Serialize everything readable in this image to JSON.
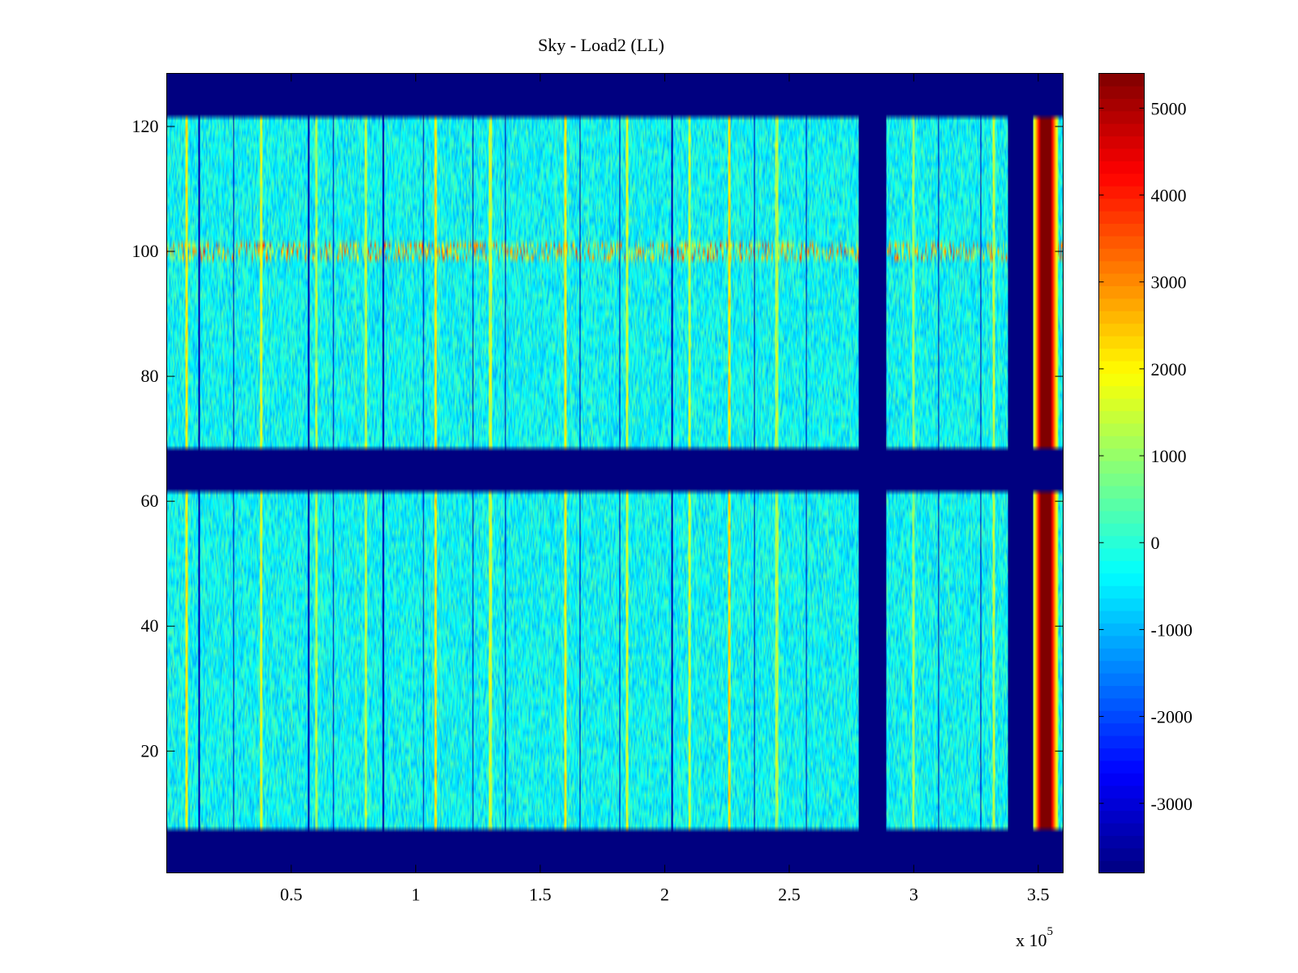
{
  "chart_data": {
    "type": "heatmap",
    "title": "Sky - Load2 (LL)",
    "xlabel": "",
    "ylabel": "",
    "x_exponent_label": "x 10",
    "x_exponent": "5",
    "xlim": [
      0,
      3.6
    ],
    "ylim": [
      0.5,
      128.5
    ],
    "x_ticks": [
      {
        "value": 0.5,
        "label": "0.5"
      },
      {
        "value": 1.0,
        "label": "1"
      },
      {
        "value": 1.5,
        "label": "1.5"
      },
      {
        "value": 2.0,
        "label": "2"
      },
      {
        "value": 2.5,
        "label": "2.5"
      },
      {
        "value": 3.0,
        "label": "3"
      },
      {
        "value": 3.5,
        "label": "3.5"
      }
    ],
    "y_ticks": [
      {
        "value": 20,
        "label": "20"
      },
      {
        "value": 40,
        "label": "40"
      },
      {
        "value": 60,
        "label": "60"
      },
      {
        "value": 80,
        "label": "80"
      },
      {
        "value": 100,
        "label": "100"
      },
      {
        "value": 120,
        "label": "120"
      }
    ],
    "colorbar": {
      "colormap": "jet",
      "clim": [
        -3800,
        5400
      ],
      "ticks": [
        {
          "value": -3000,
          "label": "-3000"
        },
        {
          "value": -2000,
          "label": "-2000"
        },
        {
          "value": -1000,
          "label": "-1000"
        },
        {
          "value": 0,
          "label": "0"
        },
        {
          "value": 1000,
          "label": "1000"
        },
        {
          "value": 2000,
          "label": "2000"
        },
        {
          "value": 3000,
          "label": "3000"
        },
        {
          "value": 4000,
          "label": "4000"
        },
        {
          "value": 5000,
          "label": "5000"
        }
      ]
    },
    "baseline_value": -300,
    "masked_value": -3800,
    "masked_row_bands": [
      [
        0.5,
        7.5
      ],
      [
        61.5,
        68.5
      ],
      [
        121.5,
        128.5
      ]
    ],
    "masked_column_bands": [
      [
        2.78,
        2.89
      ],
      [
        3.38,
        3.48
      ]
    ],
    "hot_column_band": {
      "x": [
        3.48,
        3.58
      ],
      "edge_value": 1000,
      "core_value": 5400
    },
    "narrow_dark_lines_x": [
      0.13,
      0.27,
      0.57,
      0.67,
      0.87,
      1.03,
      1.23,
      1.36,
      1.66,
      1.82,
      2.03,
      2.36,
      2.57,
      3.1,
      3.27
    ],
    "hot_lines": [
      {
        "x": 0.08,
        "value": 2500
      },
      {
        "x": 0.38,
        "value": 2200
      },
      {
        "x": 0.6,
        "value": 1800
      },
      {
        "x": 0.8,
        "value": 1900
      },
      {
        "x": 1.08,
        "value": 2600
      },
      {
        "x": 1.3,
        "value": 2000
      },
      {
        "x": 1.6,
        "value": 2400
      },
      {
        "x": 1.85,
        "value": 2100
      },
      {
        "x": 2.1,
        "value": 2000
      },
      {
        "x": 2.26,
        "value": 2800
      },
      {
        "x": 2.45,
        "value": 1800
      },
      {
        "x": 3.0,
        "value": 1700
      },
      {
        "x": 3.32,
        "value": 1900
      }
    ],
    "noisy_row": {
      "y_range": [
        98.5,
        101.5
      ],
      "value_min": -1500,
      "value_max": 4000
    }
  }
}
